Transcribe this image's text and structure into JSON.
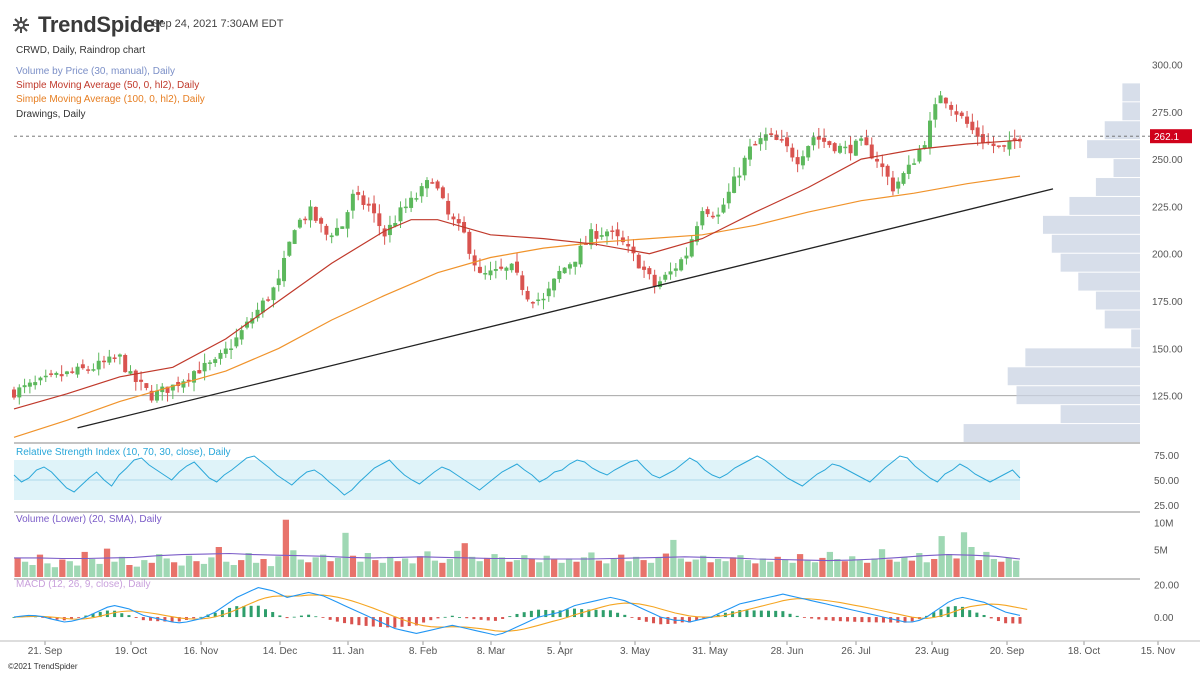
{
  "header": {
    "brand": "TrendSpider",
    "timestamp": "Sep 24, 2021 7:30AM EDT",
    "copyright": "©2021 TrendSpider"
  },
  "legends": {
    "main": "CRWD, Daily, Raindrop chart",
    "vbp": "Volume by Price (30, manual), Daily",
    "sma50": "Simple Moving Average (50, 0, hl2), Daily",
    "sma100": "Simple Moving Average (100, 0, hl2), Daily",
    "drawings": "Drawings, Daily",
    "rsi": "Relative Strength Index (10, 70, 30, close), Daily",
    "volume": "Volume (Lower) (20, SMA), Daily",
    "macd": "MACD (12, 26, 9, close), Daily"
  },
  "colors": {
    "up": "#5cb85c",
    "down": "#d9534f",
    "sma50": "#c0392b",
    "sma100": "#f0932b",
    "vbp": "#c9d3e3",
    "rsi_line": "#2aa7d9",
    "rsi_band": "#dff3f9",
    "vol_up": "#9fd8b4",
    "vol_down": "#e8736b",
    "vol_sma": "#7b5cc8",
    "macd_line": "#2196f3",
    "signal_line": "#f5a623",
    "trendline": "#222222",
    "price_badge": "#d0021b"
  },
  "chart_data": [
    {
      "type": "candlestick",
      "title": "CRWD, Daily, Raindrop chart",
      "x_ticks": [
        "21. Sep",
        "19. Oct",
        "16. Nov",
        "14. Dec",
        "11. Jan",
        "8. Feb",
        "8. Mar",
        "5. Apr",
        "3. May",
        "31. May",
        "28. Jun",
        "26. Jul",
        "23. Aug",
        "20. Sep",
        "18. Oct",
        "15. Nov"
      ],
      "y_ticks": [
        "125.00",
        "150.00",
        "175.00",
        "200.00",
        "225.00",
        "250.00",
        "275.00",
        "300.00"
      ],
      "ylim": [
        100,
        305
      ],
      "last_price": "262.1",
      "horizontal_level": 125,
      "price_path": [
        [
          0,
          127
        ],
        [
          8,
          135
        ],
        [
          15,
          140
        ],
        [
          20,
          145
        ],
        [
          22,
          135
        ],
        [
          26,
          125
        ],
        [
          30,
          130
        ],
        [
          34,
          138
        ],
        [
          38,
          142
        ],
        [
          42,
          155
        ],
        [
          46,
          170
        ],
        [
          50,
          185
        ],
        [
          53,
          215
        ],
        [
          56,
          222
        ],
        [
          59,
          210
        ],
        [
          62,
          215
        ],
        [
          64,
          230
        ],
        [
          67,
          225
        ],
        [
          70,
          210
        ],
        [
          73,
          222
        ],
        [
          76,
          230
        ],
        [
          79,
          240
        ],
        [
          82,
          220
        ],
        [
          85,
          210
        ],
        [
          88,
          188
        ],
        [
          91,
          190
        ],
        [
          94,
          192
        ],
        [
          97,
          178
        ],
        [
          100,
          175
        ],
        [
          103,
          190
        ],
        [
          106,
          198
        ],
        [
          109,
          210
        ],
        [
          112,
          212
        ],
        [
          115,
          205
        ],
        [
          118,
          195
        ],
        [
          121,
          183
        ],
        [
          124,
          190
        ],
        [
          127,
          200
        ],
        [
          130,
          225
        ],
        [
          133,
          220
        ],
        [
          136,
          238
        ],
        [
          139,
          255
        ],
        [
          142,
          262
        ],
        [
          145,
          258
        ],
        [
          148,
          250
        ],
        [
          151,
          262
        ],
        [
          154,
          258
        ],
        [
          157,
          255
        ],
        [
          160,
          258
        ],
        [
          163,
          250
        ],
        [
          166,
          235
        ],
        [
          169,
          245
        ],
        [
          172,
          260
        ],
        [
          175,
          285
        ],
        [
          178,
          275
        ],
        [
          181,
          265
        ],
        [
          184,
          258
        ],
        [
          187,
          255
        ],
        [
          190,
          262
        ]
      ],
      "sma50_path": [
        [
          0,
          118
        ],
        [
          10,
          126
        ],
        [
          20,
          135
        ],
        [
          30,
          140
        ],
        [
          40,
          155
        ],
        [
          50,
          175
        ],
        [
          60,
          195
        ],
        [
          70,
          212
        ],
        [
          75,
          218
        ],
        [
          80,
          218
        ],
        [
          90,
          210
        ],
        [
          100,
          208
        ],
        [
          110,
          205
        ],
        [
          120,
          200
        ],
        [
          130,
          208
        ],
        [
          140,
          222
        ],
        [
          150,
          235
        ],
        [
          160,
          250
        ],
        [
          170,
          255
        ],
        [
          180,
          258
        ],
        [
          190,
          260
        ]
      ],
      "sma100_path": [
        [
          0,
          103
        ],
        [
          10,
          112
        ],
        [
          20,
          122
        ],
        [
          30,
          130
        ],
        [
          40,
          138
        ],
        [
          50,
          150
        ],
        [
          60,
          165
        ],
        [
          70,
          178
        ],
        [
          80,
          190
        ],
        [
          90,
          198
        ],
        [
          100,
          203
        ],
        [
          110,
          206
        ],
        [
          120,
          208
        ],
        [
          130,
          210
        ],
        [
          140,
          215
        ],
        [
          150,
          222
        ],
        [
          160,
          228
        ],
        [
          170,
          232
        ],
        [
          180,
          237
        ],
        [
          190,
          241
        ]
      ],
      "trendline": [
        [
          12,
          108
        ],
        [
          190,
          230
        ]
      ],
      "volume_by_price": [
        {
          "price": 105,
          "volume": 0.2
        },
        {
          "price": 115,
          "volume": 0.09
        },
        {
          "price": 125,
          "volume": 0.14
        },
        {
          "price": 135,
          "volume": 0.15
        },
        {
          "price": 145,
          "volume": 0.13
        },
        {
          "price": 155,
          "volume": 0.01
        },
        {
          "price": 165,
          "volume": 0.04
        },
        {
          "price": 175,
          "volume": 0.05
        },
        {
          "price": 185,
          "volume": 0.07
        },
        {
          "price": 195,
          "volume": 0.09
        },
        {
          "price": 205,
          "volume": 0.1
        },
        {
          "price": 215,
          "volume": 0.11
        },
        {
          "price": 225,
          "volume": 0.08
        },
        {
          "price": 235,
          "volume": 0.05
        },
        {
          "price": 245,
          "volume": 0.03
        },
        {
          "price": 255,
          "volume": 0.06
        },
        {
          "price": 265,
          "volume": 0.04
        },
        {
          "price": 275,
          "volume": 0.02
        },
        {
          "price": 285,
          "volume": 0.02
        }
      ]
    },
    {
      "type": "line",
      "title": "Relative Strength Index (10, 70, 30, close), Daily",
      "y_ticks": [
        "25.00",
        "50.00",
        "75.00"
      ],
      "ylim": [
        20,
        78
      ],
      "band": [
        30,
        70
      ],
      "values": [
        55,
        48,
        52,
        60,
        63,
        58,
        50,
        42,
        38,
        45,
        52,
        58,
        50,
        44,
        55,
        62,
        70,
        72,
        65,
        60,
        55,
        50,
        58,
        64,
        68,
        60,
        52,
        48,
        55,
        60,
        66,
        72,
        74,
        68,
        62,
        55,
        50,
        45,
        52,
        58,
        60,
        55,
        48,
        42,
        35,
        40,
        48,
        55,
        62,
        66,
        70,
        62,
        55,
        50,
        46,
        52,
        58,
        63,
        60,
        55,
        50,
        45,
        40,
        46,
        52,
        58,
        62,
        66,
        60,
        55,
        48,
        52,
        58,
        60,
        66,
        70,
        68,
        62,
        58,
        55,
        60,
        64,
        68,
        70,
        62,
        55,
        52,
        56,
        60,
        66,
        72,
        68,
        60,
        55,
        52,
        56,
        62,
        66,
        70,
        74,
        70,
        64,
        58,
        52,
        48,
        44,
        50,
        56,
        60,
        66,
        64,
        60,
        56,
        52,
        48,
        55,
        62,
        68,
        74,
        72,
        64,
        58,
        52,
        48,
        56,
        60,
        66,
        62,
        56,
        52,
        48,
        52,
        56,
        60,
        52
      ]
    },
    {
      "type": "bar",
      "title": "Volume (Lower) (20, SMA), Daily",
      "y_ticks": [
        "5M",
        "10M"
      ],
      "ylim": [
        0,
        11
      ],
      "values": [
        3.5,
        2.8,
        2.2,
        4.1,
        2.5,
        1.8,
        3.2,
        2.9,
        2.1,
        4.6,
        3.3,
        2.4,
        5.2,
        2.8,
        3.7,
        2.2,
        1.9,
        3.1,
        2.6,
        4.2,
        3.4,
        2.7,
        2.1,
        3.9,
        2.9,
        2.4,
        3.6,
        5.5,
        2.8,
        2.2,
        3.1,
        4.4,
        2.6,
        3.3,
        2.0,
        3.8,
        10.5,
        4.9,
        3.2,
        2.7,
        3.6,
        4.1,
        2.9,
        3.5,
        8.1,
        3.9,
        2.8,
        4.4,
        3.1,
        2.6,
        3.7,
        2.9,
        3.4,
        2.5,
        3.8,
        4.7,
        3.0,
        2.6,
        3.3,
        4.8,
        6.2,
        3.7,
        2.9,
        3.5,
        4.2,
        3.6,
        2.8,
        3.1,
        4.0,
        3.3,
        2.7,
        3.9,
        3.2,
        2.6,
        3.4,
        2.8,
        3.6,
        4.5,
        3.0,
        2.5,
        3.3,
        4.1,
        2.9,
        3.7,
        3.1,
        2.6,
        3.5,
        4.3,
        6.8,
        3.4,
        2.8,
        3.2,
        3.9,
        2.7,
        3.3,
        2.9,
        3.6,
        4.0,
        3.1,
        2.5,
        3.4,
        2.8,
        3.7,
        3.2,
        2.6,
        4.2,
        3.0,
        2.7,
        3.5,
        4.6,
        3.3,
        2.9,
        3.8,
        3.1,
        2.6,
        3.4,
        5.1,
        3.2,
        2.8,
        3.6,
        3.0,
        4.4,
        2.7,
        3.3,
        7.5,
        4.2,
        3.4,
        8.2,
        5.5,
        3.1,
        4.6,
        3.3,
        2.8,
        3.5,
        3.0
      ],
      "sma_values": [
        3.5,
        3.5,
        3.4,
        3.4,
        3.5,
        3.6,
        3.9,
        4.1,
        4.2,
        4.3,
        4.1,
        4.0,
        3.9,
        3.8,
        3.6,
        3.5,
        3.6,
        3.7,
        3.6,
        3.5,
        3.4,
        3.4,
        3.3,
        3.3,
        3.3,
        3.4,
        3.5,
        3.6,
        3.7,
        3.6,
        3.5,
        3.3,
        3.2,
        3.1,
        3.0,
        3.1,
        3.3,
        3.6,
        3.9,
        4.1,
        4.0,
        3.8,
        3.3
      ]
    },
    {
      "type": "line",
      "title": "MACD (12, 26, 9, close), Daily",
      "y_ticks": [
        "0.00",
        "20.00"
      ],
      "ylim": [
        -14,
        22
      ],
      "macd_values": [
        0,
        0.5,
        1,
        0.8,
        0.2,
        -1,
        -2,
        -3,
        -2.5,
        -1.5,
        0,
        2,
        4,
        6,
        7,
        6,
        5,
        3,
        1,
        0,
        -1,
        -2,
        -3,
        -3.5,
        -3,
        -2,
        -1,
        1,
        3,
        6,
        9,
        12,
        14,
        16,
        18,
        17,
        16,
        14,
        12,
        13,
        14,
        15,
        14,
        13,
        11,
        9,
        7,
        5,
        3,
        1,
        -1,
        -3,
        -5,
        -7,
        -8,
        -9,
        -10,
        -9,
        -8,
        -7,
        -6,
        -5,
        -6,
        -7,
        -8,
        -9,
        -10,
        -11,
        -10,
        -8,
        -6,
        -4,
        -2,
        0,
        1,
        2,
        3,
        5,
        7,
        8,
        9,
        10,
        11,
        12,
        11,
        10,
        8,
        6,
        4,
        2,
        0,
        -1,
        -2,
        -2,
        -3,
        -2,
        -1,
        0,
        2,
        4,
        6,
        8,
        9,
        10,
        11,
        12,
        13,
        14,
        13,
        12,
        11,
        10,
        9,
        8,
        7,
        6,
        5,
        4,
        3,
        2,
        1,
        0,
        -1,
        -2,
        -3,
        -3,
        -2,
        0,
        3,
        6,
        9,
        11,
        12,
        11,
        10,
        9,
        7,
        5,
        3,
        2,
        1
      ],
      "signal_values": [
        0,
        0.1,
        0.3,
        0.4,
        0.4,
        0.1,
        -0.3,
        -0.8,
        -1.2,
        -1.3,
        -1.0,
        -0.4,
        0.5,
        1.6,
        2.7,
        3.4,
        3.7,
        3.6,
        3.1,
        2.5,
        1.8,
        1.0,
        0.2,
        -0.5,
        -1.0,
        -1.2,
        -1.1,
        -0.7,
        0.1,
        1.3,
        2.8,
        4.6,
        6.5,
        8.4,
        10.3,
        11.7,
        12.6,
        12.9,
        12.7,
        12.8,
        13.0,
        13.4,
        13.5,
        13.4,
        12.9,
        12.1,
        11.1,
        9.9,
        8.5,
        7.0,
        5.4,
        3.7,
        2.0,
        0.2,
        -1.4,
        -2.9,
        -4.3,
        -5.3,
        -5.9,
        -6.1,
        -6.1,
        -5.9,
        -6.0,
        -6.2,
        -6.6,
        -7.1,
        -7.7,
        -8.4,
        -8.7,
        -8.6,
        -8.1,
        -7.3,
        -6.2,
        -5.0,
        -3.8,
        -2.6,
        -1.5,
        -0.2,
        1.3,
        2.6,
        3.9,
        5.1,
        6.3,
        7.4,
        8.1,
        8.5,
        8.4,
        8.0,
        7.2,
        6.2,
        4.9,
        3.7,
        2.5,
        1.6,
        0.7,
        0.2,
        0.0,
        0.0,
        0.4,
        1.1,
        2.1,
        3.3,
        4.4,
        5.5,
        6.6,
        7.7,
        8.8,
        10.0,
        10.8,
        11.2,
        11.2,
        11.0,
        10.6,
        10.1,
        9.5,
        8.8,
        8.0,
        7.2,
        6.4,
        5.5,
        4.6,
        3.7,
        2.7,
        1.8,
        0.8,
        -0.1,
        -0.6,
        -0.8,
        -0.3,
        0.7,
        2.0,
        3.6,
        5.1,
        6.3,
        7.0,
        7.6,
        7.9,
        7.7,
        7.2,
        6.3,
        5.5,
        4.7
      ]
    }
  ]
}
